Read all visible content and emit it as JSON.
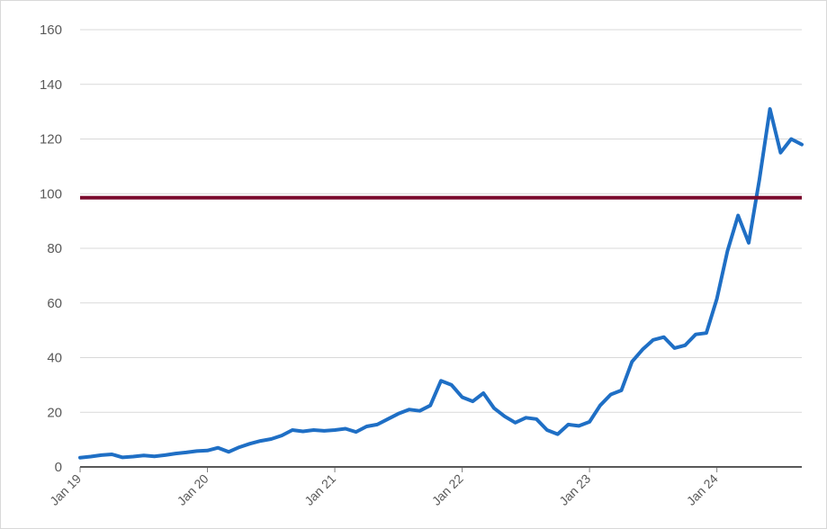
{
  "chart_data": {
    "type": "line",
    "title": "",
    "xlabel": "",
    "ylabel": "",
    "ylim": [
      0,
      160
    ],
    "yticks": [
      0,
      20,
      40,
      60,
      80,
      100,
      120,
      140,
      160
    ],
    "xlim": [
      "2019-01",
      "2024-09"
    ],
    "xticks": [
      {
        "label": "Jan 19",
        "x": "2019-01"
      },
      {
        "label": "Jan 20",
        "x": "2020-01"
      },
      {
        "label": "Jan 21",
        "x": "2021-01"
      },
      {
        "label": "Jan 22",
        "x": "2022-01"
      },
      {
        "label": "Jan 23",
        "x": "2023-01"
      },
      {
        "label": "Jan 24",
        "x": "2024-01"
      }
    ],
    "grid": true,
    "legend": "none",
    "series": [
      {
        "color": "#1f6fc5",
        "points": [
          [
            "2019-01",
            3.4
          ],
          [
            "2019-02",
            3.8
          ],
          [
            "2019-03",
            4.3
          ],
          [
            "2019-04",
            4.6
          ],
          [
            "2019-05",
            3.5
          ],
          [
            "2019-06",
            3.8
          ],
          [
            "2019-07",
            4.2
          ],
          [
            "2019-08",
            3.9
          ],
          [
            "2019-09",
            4.3
          ],
          [
            "2019-10",
            4.9
          ],
          [
            "2019-11",
            5.3
          ],
          [
            "2019-12",
            5.8
          ],
          [
            "2020-01",
            6.0
          ],
          [
            "2020-02",
            7.0
          ],
          [
            "2020-03",
            5.5
          ],
          [
            "2020-04",
            7.2
          ],
          [
            "2020-05",
            8.5
          ],
          [
            "2020-06",
            9.5
          ],
          [
            "2020-07",
            10.2
          ],
          [
            "2020-08",
            11.5
          ],
          [
            "2020-09",
            13.5
          ],
          [
            "2020-10",
            13.0
          ],
          [
            "2020-11",
            13.5
          ],
          [
            "2020-12",
            13.2
          ],
          [
            "2021-01",
            13.5
          ],
          [
            "2021-02",
            14.0
          ],
          [
            "2021-03",
            12.8
          ],
          [
            "2021-04",
            14.8
          ],
          [
            "2021-05",
            15.5
          ],
          [
            "2021-06",
            17.5
          ],
          [
            "2021-07",
            19.5
          ],
          [
            "2021-08",
            21.0
          ],
          [
            "2021-09",
            20.5
          ],
          [
            "2021-10",
            22.5
          ],
          [
            "2021-11",
            31.5
          ],
          [
            "2021-12",
            30.0
          ],
          [
            "2022-01",
            25.5
          ],
          [
            "2022-02",
            24.0
          ],
          [
            "2022-03",
            27.0
          ],
          [
            "2022-04",
            21.5
          ],
          [
            "2022-05",
            18.5
          ],
          [
            "2022-06",
            16.2
          ],
          [
            "2022-07",
            18.0
          ],
          [
            "2022-08",
            17.5
          ],
          [
            "2022-09",
            13.5
          ],
          [
            "2022-10",
            12.0
          ],
          [
            "2022-11",
            15.5
          ],
          [
            "2022-12",
            15.0
          ],
          [
            "2023-01",
            16.5
          ],
          [
            "2023-02",
            22.5
          ],
          [
            "2023-03",
            26.5
          ],
          [
            "2023-04",
            28.0
          ],
          [
            "2023-05",
            38.5
          ],
          [
            "2023-06",
            43.0
          ],
          [
            "2023-07",
            46.5
          ],
          [
            "2023-08",
            47.5
          ],
          [
            "2023-09",
            43.5
          ],
          [
            "2023-10",
            44.5
          ],
          [
            "2023-11",
            48.5
          ],
          [
            "2023-12",
            49.0
          ],
          [
            "2024-01",
            61.5
          ],
          [
            "2024-02",
            79.0
          ],
          [
            "2024-03",
            92.0
          ],
          [
            "2024-04",
            82.0
          ],
          [
            "2024-05",
            105.0
          ],
          [
            "2024-06",
            131.0
          ],
          [
            "2024-07",
            115.0
          ],
          [
            "2024-08",
            120.0
          ],
          [
            "2024-09",
            118.0
          ]
        ]
      }
    ],
    "reference_lines": [
      {
        "type": "horizontal",
        "y": 98.5,
        "color": "#7b0c2e"
      }
    ]
  }
}
